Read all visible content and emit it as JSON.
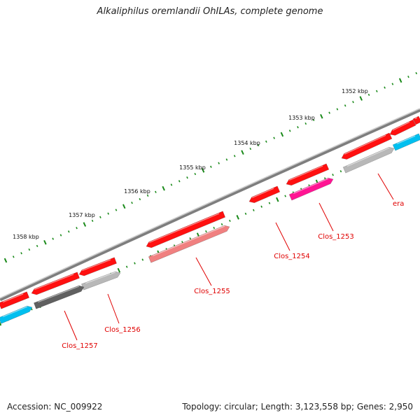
{
  "title": "Alkaliphilus oremlandii OhILAs, complete genome",
  "footer": {
    "accession": "Accession: NC_009922",
    "summary": "Topology: circular; Length: 3,123,558 bp; Genes: 2,950"
  },
  "scale_labels": [
    "1352 kbp",
    "1353 kbp",
    "1354 kbp",
    "1355 kbp",
    "1356 kbp",
    "1357 kbp",
    "1358 kbp"
  ],
  "gene_labels": [
    "era",
    "Clos_1253",
    "Clos_1254",
    "Clos_1255",
    "Clos_1256",
    "Clos_1257"
  ],
  "colors": {
    "backbone": "#8a8a8a",
    "gene_red": "#ff1010",
    "gene_pink_light": "#f08080",
    "gene_magenta": "#ff1493",
    "gene_cyan": "#00bfef",
    "gene_gray_light": "#b8b8b8",
    "gene_gray_dark": "#606060",
    "ruler_green": "#1a8a1a",
    "label_red": "#e00000"
  }
}
